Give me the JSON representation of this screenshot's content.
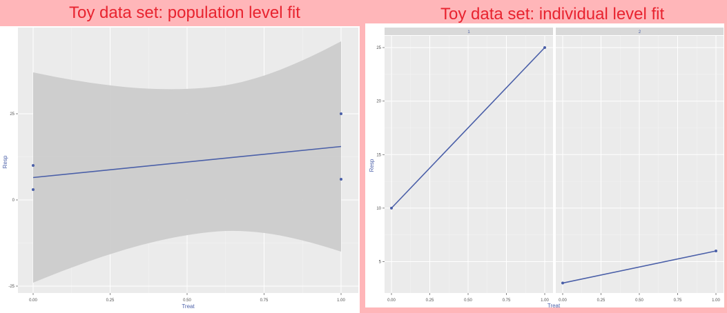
{
  "left_title": "Toy data set: population level fit",
  "right_title": "Toy data set: individual level fit",
  "colors": {
    "banner": "#ffb6b9",
    "title_text": "#e8232f",
    "panel_bg": "#ebebeb",
    "ribbon": "#cccccc",
    "line": "#4a5fa8",
    "strip_bg": "#d9d9d9"
  },
  "chart_data": [
    {
      "type": "line",
      "title": "",
      "xlabel": "Treat",
      "ylabel": "Resp",
      "xlim": [
        0,
        1
      ],
      "ylim": [
        -25,
        40
      ],
      "x_ticks": [
        "0.00",
        "0.25",
        "0.50",
        "0.75",
        "1.00"
      ],
      "y_ticks": [
        "-25",
        "0",
        "25"
      ],
      "grid": true,
      "points": [
        {
          "x": 0,
          "y": 10
        },
        {
          "x": 0,
          "y": 3
        },
        {
          "x": 1,
          "y": 25
        },
        {
          "x": 1,
          "y": 6
        }
      ],
      "fit_line": [
        {
          "x": 0,
          "y": 6.5
        },
        {
          "x": 1,
          "y": 15.5
        }
      ],
      "confidence_band": {
        "x": [
          0,
          0.25,
          0.5,
          0.6,
          0.75,
          1.0
        ],
        "upper": [
          37,
          32.5,
          30.5,
          30.5,
          32.5,
          46
        ],
        "lower": [
          -24,
          -14,
          -11,
          -10.5,
          -11,
          -15
        ]
      }
    },
    {
      "type": "line",
      "title": "",
      "xlabel": "Treat",
      "ylabel": "Resp",
      "xlim": [
        0,
        1
      ],
      "ylim": [
        3,
        25
      ],
      "x_ticks": [
        "0.00",
        "0.25",
        "0.50",
        "0.75",
        "1.00"
      ],
      "y_ticks": [
        "5",
        "10",
        "15",
        "20",
        "25"
      ],
      "grid": true,
      "facets": [
        {
          "label": "1",
          "points": [
            {
              "x": 0,
              "y": 10
            },
            {
              "x": 1,
              "y": 25
            }
          ]
        },
        {
          "label": "2",
          "points": [
            {
              "x": 0,
              "y": 3
            },
            {
              "x": 1,
              "y": 6
            }
          ]
        }
      ]
    }
  ]
}
